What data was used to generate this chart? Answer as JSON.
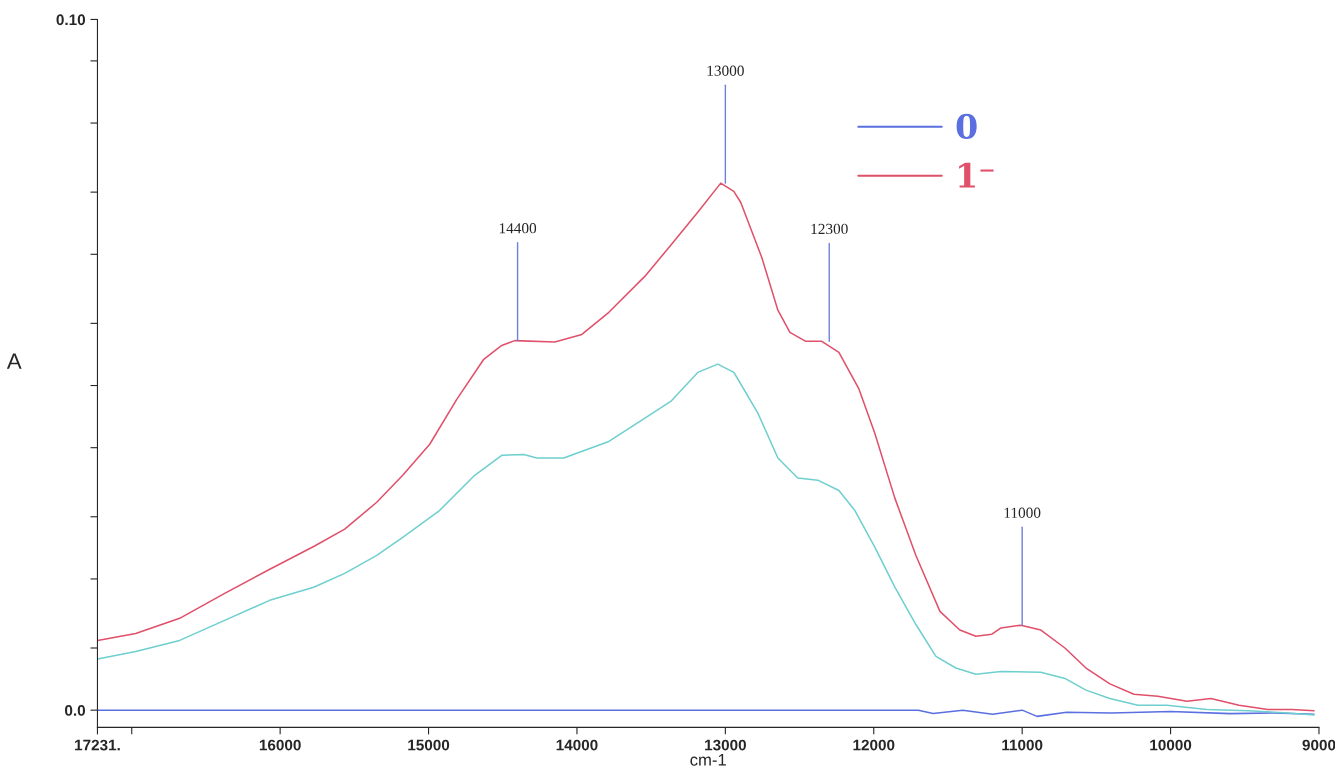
{
  "chart_data": {
    "type": "line",
    "xlabel": "cm-1",
    "ylabel": "A",
    "xlim": [
      17231,
      9000
    ],
    "ylim": [
      -0.0025,
      0.1
    ],
    "xticks": [
      {
        "value": 17231,
        "label": "17231."
      },
      {
        "value": 17000,
        "label": null
      },
      16000,
      15000,
      14000,
      13000,
      12000,
      11000,
      10000,
      9000
    ],
    "yticks": [
      {
        "value": 0.0,
        "label": "0.0"
      },
      {
        "value": 0.009,
        "label": null
      },
      {
        "value": 0.019,
        "label": null
      },
      {
        "value": 0.028,
        "label": null
      },
      {
        "value": 0.038,
        "label": null
      },
      {
        "value": 0.047,
        "label": null
      },
      {
        "value": 0.056,
        "label": null
      },
      {
        "value": 0.066,
        "label": null
      },
      {
        "value": 0.075,
        "label": null
      },
      {
        "value": 0.085,
        "label": null
      },
      {
        "value": 0.094,
        "label": null
      },
      {
        "value": 0.1,
        "label": "0.10"
      }
    ],
    "grid": false,
    "legend": "top right",
    "marker": "none",
    "line_style": "solid",
    "series": [
      {
        "name": "0",
        "color": "#5a6fe0",
        "x": [
          17230,
          13400,
          12000,
          11700,
          11600,
          11400,
          11200,
          11000,
          10900,
          10700,
          10400,
          10000,
          9600,
          9300,
          9034
        ],
        "values": [
          0.0,
          0.0,
          0.0,
          0.0,
          -0.0005,
          0.0,
          -0.0006,
          0.0,
          -0.0009,
          -0.0003,
          -0.0004,
          -0.0002,
          -0.0005,
          -0.0004,
          -0.0006
        ]
      },
      {
        "name": "1⁻",
        "color": "#e0506a",
        "x": [
          17230,
          16973,
          16677,
          16374,
          16070,
          15774,
          15565,
          15349,
          15174,
          14992,
          14810,
          14628,
          14507,
          14419,
          14149,
          13967,
          13785,
          13543,
          13368,
          13186,
          13031,
          12943,
          12896,
          12754,
          12646,
          12565,
          12458,
          12350,
          12235,
          12100,
          11993,
          11858,
          11716,
          11554,
          11420,
          11312,
          11204,
          11143,
          11009,
          10874,
          10712,
          10570,
          10409,
          10247,
          10085,
          9890,
          9728,
          9539,
          9344,
          9182,
          9034
        ],
        "values": [
          0.0101,
          0.0111,
          0.0133,
          0.0169,
          0.0204,
          0.0237,
          0.0262,
          0.0301,
          0.034,
          0.0385,
          0.045,
          0.0508,
          0.0528,
          0.0535,
          0.0533,
          0.0544,
          0.0576,
          0.0628,
          0.0673,
          0.0721,
          0.0763,
          0.0751,
          0.0735,
          0.0655,
          0.0579,
          0.0547,
          0.0534,
          0.0534,
          0.0518,
          0.0465,
          0.0401,
          0.0307,
          0.0224,
          0.0143,
          0.0116,
          0.0107,
          0.011,
          0.0119,
          0.0123,
          0.0116,
          0.009,
          0.0061,
          0.0038,
          0.0023,
          0.002,
          0.0013,
          0.0017,
          0.0007,
          0.0001,
          0.0001,
          -0.0001
        ]
      },
      {
        "color": "#6fcfcf",
        "x": [
          17230,
          16973,
          16677,
          16374,
          16070,
          15774,
          15565,
          15349,
          15174,
          14931,
          14689,
          14507,
          14358,
          14271,
          14089,
          13785,
          13576,
          13368,
          13186,
          13051,
          12943,
          12923,
          12781,
          12646,
          12512,
          12377,
          12235,
          12127,
          11993,
          11858,
          11716,
          11581,
          11447,
          11312,
          11143,
          10874,
          10712,
          10570,
          10409,
          10220,
          10024,
          9755,
          9479,
          9209,
          9034
        ],
        "values": [
          0.0074,
          0.0085,
          0.0101,
          0.013,
          0.0159,
          0.0178,
          0.0198,
          0.0224,
          0.025,
          0.0288,
          0.034,
          0.0369,
          0.037,
          0.0365,
          0.0365,
          0.0389,
          0.0418,
          0.0447,
          0.0489,
          0.0501,
          0.0489,
          0.0482,
          0.043,
          0.0365,
          0.0336,
          0.0333,
          0.0318,
          0.0289,
          0.0236,
          0.0178,
          0.0124,
          0.0078,
          0.0061,
          0.0052,
          0.0056,
          0.0055,
          0.0046,
          0.0029,
          0.0017,
          0.0007,
          0.0007,
          0.0001,
          -0.0001,
          -0.0004,
          -0.0007
        ]
      }
    ],
    "annotations": [
      {
        "text": "14400",
        "x": 14400,
        "y": 0.0535
      },
      {
        "text": "13000",
        "x": 13000,
        "y": 0.0763
      },
      {
        "text": "12300",
        "x": 12300,
        "y": 0.0534
      },
      {
        "text": "11000",
        "x": 11000,
        "y": 0.0123
      }
    ]
  }
}
